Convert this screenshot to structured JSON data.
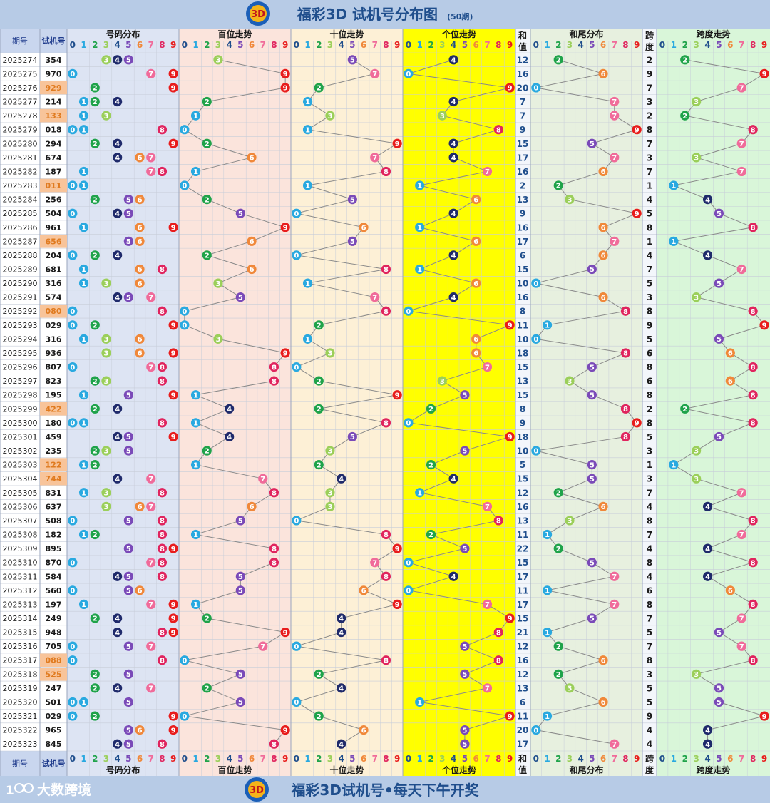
{
  "title": "福彩3D 试机号分布图",
  "title_sub": "(50期)",
  "footer_brand": "大数跨境",
  "footer_slogan": "福彩3D试机号•每天下午开奖",
  "headers": {
    "period": "期号",
    "number": "试机号",
    "dist": "号码分布",
    "hundreds": "百位走势",
    "tens": "十位走势",
    "units": "个位走势",
    "sum_top": "和",
    "sum_bottom": "值",
    "tail": "和尾分布",
    "span_top": "跨",
    "span_bottom": "度",
    "span_trend": "跨度走势"
  },
  "digits": [
    "0",
    "1",
    "2",
    "3",
    "4",
    "5",
    "6",
    "7",
    "8",
    "9"
  ],
  "colors": {
    "title_bg": "#b7cbe6",
    "title_text": "#1f4e8c",
    "number_blue": "#1f3b8c",
    "number_repeat": "#e07b20",
    "repeat_bg": "#f8c49a",
    "dist_bg": "#dde4f3",
    "hundreds_bg": "#fbe4dc",
    "tens_bg": "#fdf0d6",
    "units_bg": "#ffff00",
    "sum_bg": "#f3f6fb",
    "tail_bg": "#e7f0df",
    "span_bg": "#d9f6d9",
    "period_bg": "#ffffff",
    "grid": "#c7cdd9",
    "line": "#8a8a8a",
    "digit_colors": [
      "#29a9e0",
      "#29a9e0",
      "#1fa34a",
      "#9bcf5a",
      "#1f2a6b",
      "#7a4ab8",
      "#f0883a",
      "#f06b9a",
      "#e0245e",
      "#e81c1c"
    ]
  },
  "chart_data": {
    "type": "table",
    "columns": [
      "期号",
      "试机号",
      "号码分布",
      "百位走势",
      "十位走势",
      "个位走势",
      "和值",
      "和尾分布",
      "跨度",
      "跨度走势"
    ],
    "rows": [
      {
        "period": "2025274",
        "number": "354"
      },
      {
        "period": "2025275",
        "number": "970"
      },
      {
        "period": "2025276",
        "number": "929"
      },
      {
        "period": "2025277",
        "number": "214"
      },
      {
        "period": "2025278",
        "number": "133"
      },
      {
        "period": "2025279",
        "number": "018"
      },
      {
        "period": "2025280",
        "number": "294"
      },
      {
        "period": "2025281",
        "number": "674"
      },
      {
        "period": "2025282",
        "number": "187"
      },
      {
        "period": "2025283",
        "number": "011"
      },
      {
        "period": "2025284",
        "number": "256"
      },
      {
        "period": "2025285",
        "number": "504"
      },
      {
        "period": "2025286",
        "number": "961"
      },
      {
        "period": "2025287",
        "number": "656"
      },
      {
        "period": "2025288",
        "number": "204"
      },
      {
        "period": "2025289",
        "number": "681"
      },
      {
        "period": "2025290",
        "number": "316"
      },
      {
        "period": "2025291",
        "number": "574"
      },
      {
        "period": "2025292",
        "number": "080"
      },
      {
        "period": "2025293",
        "number": "029"
      },
      {
        "period": "2025294",
        "number": "316"
      },
      {
        "period": "2025295",
        "number": "936"
      },
      {
        "period": "2025296",
        "number": "807"
      },
      {
        "period": "2025297",
        "number": "823"
      },
      {
        "period": "2025298",
        "number": "195"
      },
      {
        "period": "2025299",
        "number": "422"
      },
      {
        "period": "2025300",
        "number": "180"
      },
      {
        "period": "2025301",
        "number": "459"
      },
      {
        "period": "2025302",
        "number": "235"
      },
      {
        "period": "2025303",
        "number": "122"
      },
      {
        "period": "2025304",
        "number": "744"
      },
      {
        "period": "2025305",
        "number": "831"
      },
      {
        "period": "2025306",
        "number": "637"
      },
      {
        "period": "2025307",
        "number": "508"
      },
      {
        "period": "2025308",
        "number": "182"
      },
      {
        "period": "2025309",
        "number": "895"
      },
      {
        "period": "2025310",
        "number": "870"
      },
      {
        "period": "2025311",
        "number": "584"
      },
      {
        "period": "2025312",
        "number": "560"
      },
      {
        "period": "2025313",
        "number": "197"
      },
      {
        "period": "2025314",
        "number": "249"
      },
      {
        "period": "2025315",
        "number": "948"
      },
      {
        "period": "2025316",
        "number": "705"
      },
      {
        "period": "2025317",
        "number": "088"
      },
      {
        "period": "2025318",
        "number": "525"
      },
      {
        "period": "2025319",
        "number": "247"
      },
      {
        "period": "2025320",
        "number": "501"
      },
      {
        "period": "2025321",
        "number": "029"
      },
      {
        "period": "2025322",
        "number": "965"
      },
      {
        "period": "2025323",
        "number": "845"
      }
    ]
  }
}
